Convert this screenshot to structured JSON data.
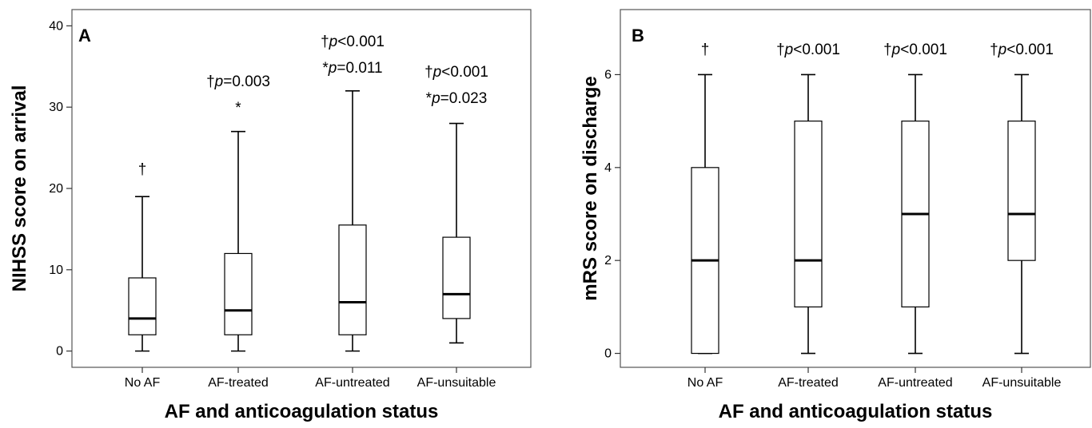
{
  "chart_data": [
    {
      "type": "boxplot",
      "panel_label": "A",
      "xlabel": "AF and anticoagulation status",
      "ylabel": "NIHSS score on arrival",
      "categories": [
        "No AF",
        "AF-treated",
        "AF-untreated",
        "AF-unsuitable"
      ],
      "ylim": [
        -2,
        42
      ],
      "yticks": [
        "0",
        "10",
        "20",
        "30",
        "40"
      ],
      "ytick_values": [
        0,
        10,
        20,
        30,
        40
      ],
      "boxes": [
        {
          "min": 0,
          "q1": 2,
          "median": 4,
          "q3": 9,
          "max": 19
        },
        {
          "min": 0,
          "q1": 2,
          "median": 5,
          "q3": 12,
          "max": 27
        },
        {
          "min": 0,
          "q1": 2,
          "median": 6,
          "q3": 15.5,
          "max": 32
        },
        {
          "min": 1,
          "q1": 4,
          "median": 7,
          "q3": 14,
          "max": 28
        }
      ],
      "annotations": [
        [
          {
            "sym": "†",
            "p": "",
            "val": ""
          }
        ],
        [
          {
            "sym": "†",
            "p": "p",
            "val": "=0.003"
          },
          {
            "sym": "*",
            "p": "",
            "val": ""
          }
        ],
        [
          {
            "sym": "†",
            "p": "p",
            "val": "<0.001"
          },
          {
            "sym": "*",
            "p": "p",
            "val": "=0.011"
          }
        ],
        [
          {
            "sym": "†",
            "p": "p",
            "val": "<0.001"
          },
          {
            "sym": "*",
            "p": "p",
            "val": "=0.023"
          }
        ]
      ],
      "grid": false
    },
    {
      "type": "boxplot",
      "panel_label": "B",
      "xlabel": "AF and anticoagulation status",
      "ylabel": "mRS score on discharge",
      "categories": [
        "No AF",
        "AF-treated",
        "AF-untreated",
        "AF-unsuitable"
      ],
      "ylim": [
        -0.3,
        7.4
      ],
      "yticks": [
        "0",
        "2",
        "4",
        "6"
      ],
      "ytick_values": [
        0,
        2,
        4,
        6
      ],
      "boxes": [
        {
          "min": 0,
          "q1": 0,
          "median": 2,
          "q3": 4,
          "max": 6
        },
        {
          "min": 0,
          "q1": 1,
          "median": 2,
          "q3": 5,
          "max": 6
        },
        {
          "min": 0,
          "q1": 1,
          "median": 3,
          "q3": 5,
          "max": 6
        },
        {
          "min": 0,
          "q1": 2,
          "median": 3,
          "q3": 5,
          "max": 6
        }
      ],
      "annotations": [
        [
          {
            "sym": "†",
            "p": "",
            "val": ""
          }
        ],
        [
          {
            "sym": "†",
            "p": "p",
            "val": "<0.001"
          }
        ],
        [
          {
            "sym": "†",
            "p": "p",
            "val": "<0.001"
          }
        ],
        [
          {
            "sym": "†",
            "p": "p",
            "val": "<0.001"
          }
        ]
      ],
      "grid": false
    }
  ]
}
